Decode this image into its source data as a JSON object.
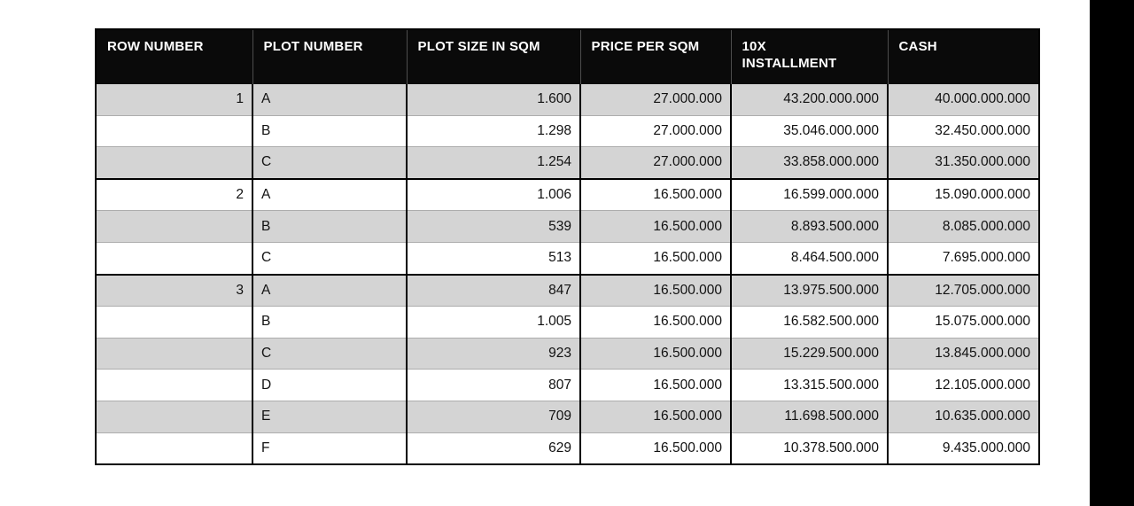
{
  "page": {
    "background_color": "#ffffff",
    "right_strip_color": "#000000"
  },
  "table": {
    "colors": {
      "header_bg": "#0a0a0a",
      "header_text": "#ffffff",
      "stripe_gray": "#d4d4d4",
      "row_white": "#ffffff",
      "border_black": "#000000",
      "border_light": "#adadad"
    },
    "headers": [
      {
        "label": "ROW NUMBER"
      },
      {
        "label": "PLOT NUMBER"
      },
      {
        "label": "PLOT SIZE IN SQM"
      },
      {
        "label": "PRICE PER SQM"
      },
      {
        "label": "10X INSTALLMENT"
      },
      {
        "label": "CASH"
      }
    ],
    "groups": [
      {
        "row_number": "1",
        "plots": [
          {
            "plot_number": "A",
            "plot_size_sqm": "1.600",
            "price_per_sqm": "27.000.000",
            "installment_10x": "43.200.000.000",
            "cash": "40.000.000.000"
          },
          {
            "plot_number": "B",
            "plot_size_sqm": "1.298",
            "price_per_sqm": "27.000.000",
            "installment_10x": "35.046.000.000",
            "cash": "32.450.000.000"
          },
          {
            "plot_number": "C",
            "plot_size_sqm": "1.254",
            "price_per_sqm": "27.000.000",
            "installment_10x": "33.858.000.000",
            "cash": "31.350.000.000"
          }
        ]
      },
      {
        "row_number": "2",
        "plots": [
          {
            "plot_number": "A",
            "plot_size_sqm": "1.006",
            "price_per_sqm": "16.500.000",
            "installment_10x": "16.599.000.000",
            "cash": "15.090.000.000"
          },
          {
            "plot_number": "B",
            "plot_size_sqm": "539",
            "price_per_sqm": "16.500.000",
            "installment_10x": "8.893.500.000",
            "cash": "8.085.000.000"
          },
          {
            "plot_number": "C",
            "plot_size_sqm": "513",
            "price_per_sqm": "16.500.000",
            "installment_10x": "8.464.500.000",
            "cash": "7.695.000.000"
          }
        ]
      },
      {
        "row_number": "3",
        "plots": [
          {
            "plot_number": "A",
            "plot_size_sqm": "847",
            "price_per_sqm": "16.500.000",
            "installment_10x": "13.975.500.000",
            "cash": "12.705.000.000"
          },
          {
            "plot_number": "B",
            "plot_size_sqm": "1.005",
            "price_per_sqm": "16.500.000",
            "installment_10x": "16.582.500.000",
            "cash": "15.075.000.000"
          },
          {
            "plot_number": "C",
            "plot_size_sqm": "923",
            "price_per_sqm": "16.500.000",
            "installment_10x": "15.229.500.000",
            "cash": "13.845.000.000"
          },
          {
            "plot_number": "D",
            "plot_size_sqm": "807",
            "price_per_sqm": "16.500.000",
            "installment_10x": "13.315.500.000",
            "cash": "12.105.000.000"
          },
          {
            "plot_number": "E",
            "plot_size_sqm": "709",
            "price_per_sqm": "16.500.000",
            "installment_10x": "11.698.500.000",
            "cash": "10.635.000.000"
          },
          {
            "plot_number": "F",
            "plot_size_sqm": "629",
            "price_per_sqm": "16.500.000",
            "installment_10x": "10.378.500.000",
            "cash": "9.435.000.000"
          }
        ]
      }
    ]
  }
}
